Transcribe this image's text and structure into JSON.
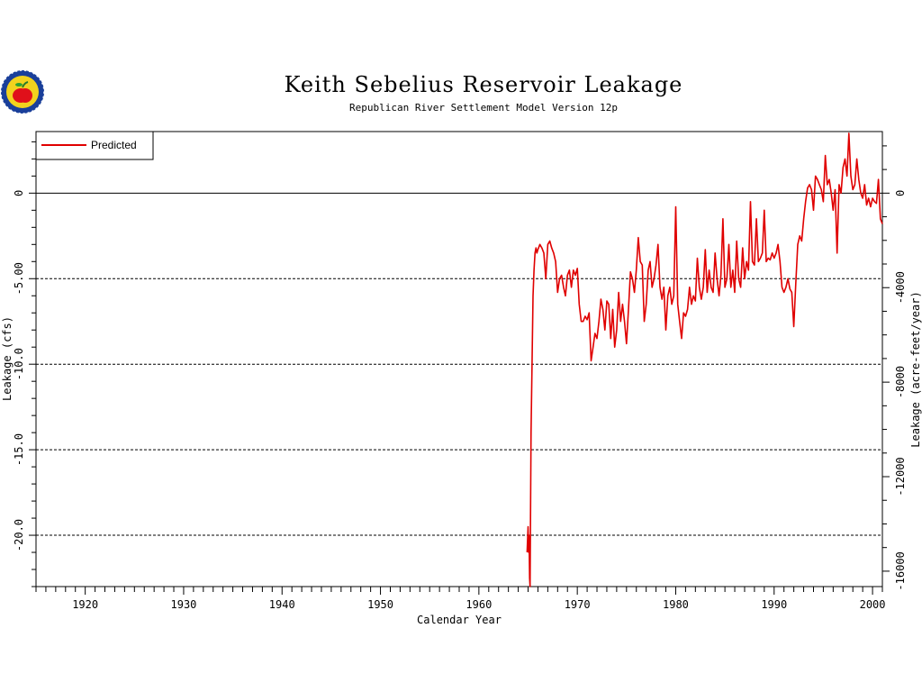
{
  "chart_data": {
    "type": "line",
    "title": "Keith Sebelius Reservoir Leakage",
    "subtitle": "Republican River Settlement Model Version 12p",
    "xlabel": "Calendar Year",
    "ylabel": "Leakage (cfs)",
    "ylabel_right": "Leakage (acre-feet/year)",
    "xlim": [
      1915,
      2001
    ],
    "ylim": [
      -23,
      3.6
    ],
    "x_ticks": [
      1920,
      1930,
      1940,
      1950,
      1960,
      1970,
      1980,
      1990,
      2000
    ],
    "y_ticks": [
      0,
      -5.0,
      -10.0,
      -15.0,
      -20.0
    ],
    "y_tick_labels": [
      "0",
      "-5.00",
      "-10.0",
      "-15.0",
      "-20.0"
    ],
    "y_right_ticks": [
      0,
      -4000,
      -8000,
      -12000,
      -16000
    ],
    "y_right_tick_labels": [
      "0",
      "-4000",
      "-8000",
      "-12000",
      "-16000"
    ],
    "grid": "dashed horizontal at -5, -10, -15, -20; solid at 0",
    "legend_position": "top-left",
    "series": [
      {
        "name": "Predicted",
        "color": "#e00000",
        "x": [
          1964.9,
          1965.0,
          1965.05,
          1965.1,
          1965.15,
          1965.2,
          1965.25,
          1965.3,
          1965.4,
          1965.5,
          1965.6,
          1965.7,
          1965.8,
          1965.9,
          1966.0,
          1966.2,
          1966.4,
          1966.6,
          1966.8,
          1967.0,
          1967.2,
          1967.4,
          1967.6,
          1967.8,
          1968.0,
          1968.2,
          1968.4,
          1968.6,
          1968.8,
          1969.0,
          1969.2,
          1969.4,
          1969.6,
          1969.8,
          1970.0,
          1970.2,
          1970.4,
          1970.6,
          1970.8,
          1971.0,
          1971.2,
          1971.4,
          1971.6,
          1971.8,
          1972.0,
          1972.2,
          1972.4,
          1972.6,
          1972.8,
          1973.0,
          1973.2,
          1973.4,
          1973.6,
          1973.8,
          1974.0,
          1974.2,
          1974.4,
          1974.6,
          1974.8,
          1975.0,
          1975.2,
          1975.4,
          1975.6,
          1975.8,
          1976.0,
          1976.2,
          1976.4,
          1976.6,
          1976.8,
          1977.0,
          1977.2,
          1977.4,
          1977.6,
          1977.8,
          1978.0,
          1978.2,
          1978.4,
          1978.6,
          1978.8,
          1979.0,
          1979.2,
          1979.4,
          1979.6,
          1979.8,
          1980.0,
          1980.2,
          1980.4,
          1980.6,
          1980.8,
          1981.0,
          1981.2,
          1981.4,
          1981.6,
          1981.8,
          1982.0,
          1982.2,
          1982.4,
          1982.6,
          1982.8,
          1983.0,
          1983.2,
          1983.4,
          1983.6,
          1983.8,
          1984.0,
          1984.2,
          1984.4,
          1984.6,
          1984.8,
          1985.0,
          1985.2,
          1985.4,
          1985.6,
          1985.8,
          1986.0,
          1986.2,
          1986.4,
          1986.6,
          1986.8,
          1987.0,
          1987.2,
          1987.4,
          1987.6,
          1987.8,
          1988.0,
          1988.2,
          1988.4,
          1988.6,
          1988.8,
          1989.0,
          1989.2,
          1989.4,
          1989.6,
          1989.8,
          1990.0,
          1990.2,
          1990.4,
          1990.6,
          1990.8,
          1991.0,
          1991.2,
          1991.4,
          1991.6,
          1991.8,
          1992.0,
          1992.2,
          1992.4,
          1992.6,
          1992.8,
          1993.0,
          1993.2,
          1993.4,
          1993.6,
          1993.8,
          1994.0,
          1994.2,
          1994.4,
          1994.6,
          1994.8,
          1995.0,
          1995.2,
          1995.4,
          1995.6,
          1995.8,
          1996.0,
          1996.2,
          1996.4,
          1996.6,
          1996.8,
          1997.0,
          1997.2,
          1997.4,
          1997.6,
          1997.8,
          1998.0,
          1998.2,
          1998.4,
          1998.6,
          1998.8,
          1999.0,
          1999.2,
          1999.4,
          1999.6,
          1999.8,
          2000.0,
          2000.2,
          2000.4,
          2000.6,
          2000.8,
          2001.0
        ],
        "values": [
          -21.0,
          -19.5,
          -21.0,
          -20.0,
          -22.5,
          -23.0,
          -19.0,
          -14.0,
          -10.0,
          -6.0,
          -4.5,
          -3.5,
          -3.2,
          -3.5,
          -3.3,
          -3.0,
          -3.2,
          -3.5,
          -5.0,
          -3.0,
          -2.8,
          -3.2,
          -3.5,
          -4.0,
          -5.8,
          -5.0,
          -4.8,
          -5.5,
          -6.0,
          -4.8,
          -4.5,
          -5.5,
          -4.5,
          -4.8,
          -4.4,
          -6.5,
          -7.5,
          -7.5,
          -7.2,
          -7.4,
          -7.0,
          -9.8,
          -9.0,
          -8.2,
          -8.5,
          -7.5,
          -6.2,
          -6.8,
          -8.0,
          -6.3,
          -6.5,
          -8.5,
          -6.8,
          -9.0,
          -8.0,
          -5.8,
          -7.5,
          -6.5,
          -7.5,
          -8.8,
          -6.8,
          -4.6,
          -5.0,
          -5.8,
          -4.5,
          -2.6,
          -4.0,
          -4.2,
          -7.5,
          -6.5,
          -4.5,
          -4.0,
          -5.5,
          -5.0,
          -4.2,
          -3.0,
          -5.5,
          -6.2,
          -5.5,
          -8.0,
          -6.0,
          -5.5,
          -6.5,
          -6.0,
          -0.8,
          -6.5,
          -7.5,
          -8.5,
          -7.0,
          -7.2,
          -6.8,
          -5.5,
          -6.5,
          -6.0,
          -6.3,
          -3.8,
          -5.5,
          -6.2,
          -5.5,
          -3.3,
          -5.8,
          -4.5,
          -5.5,
          -5.8,
          -3.5,
          -5.0,
          -6.0,
          -4.8,
          -1.5,
          -5.5,
          -5.0,
          -3.0,
          -5.5,
          -4.5,
          -5.8,
          -2.8,
          -5.0,
          -5.5,
          -3.2,
          -5.0,
          -4.0,
          -4.5,
          -0.5,
          -4.0,
          -4.2,
          -1.5,
          -4.0,
          -3.8,
          -3.5,
          -1.0,
          -4.0,
          -3.8,
          -3.9,
          -3.5,
          -3.8,
          -3.5,
          -3.0,
          -4.0,
          -5.5,
          -5.8,
          -5.5,
          -5.0,
          -5.6,
          -5.8,
          -7.8,
          -5.3,
          -3.0,
          -2.5,
          -2.8,
          -1.5,
          -0.5,
          0.3,
          0.5,
          0.2,
          -1.0,
          1.0,
          0.8,
          0.5,
          0.2,
          -0.5,
          2.2,
          0.5,
          0.8,
          0.0,
          -1.0,
          0.2,
          -3.5,
          0.5,
          0.0,
          1.5,
          2.0,
          1.0,
          3.5,
          1.0,
          0.2,
          0.5,
          2.0,
          0.8,
          0.0,
          -0.3,
          0.5,
          -0.7,
          -0.3,
          -0.8,
          -0.3,
          -0.5,
          -0.6,
          0.8,
          -1.5,
          -1.8
        ]
      }
    ]
  }
}
